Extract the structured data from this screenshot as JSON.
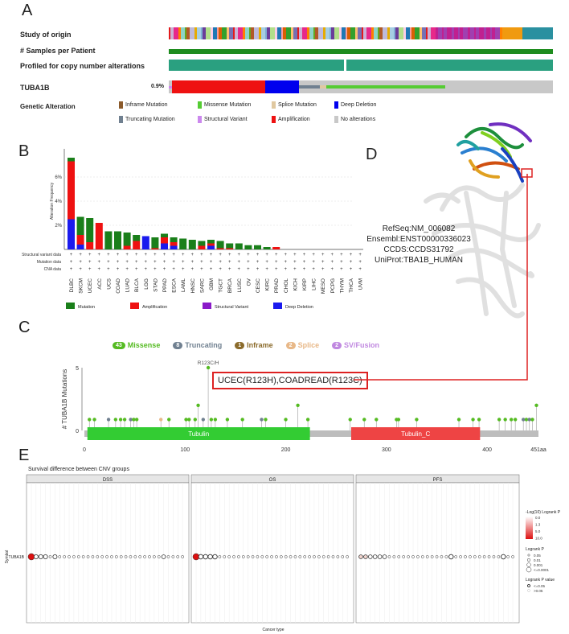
{
  "panels": {
    "a": "A",
    "b": "B",
    "c": "C",
    "d": "D",
    "e": "E"
  },
  "oncoprint": {
    "tracks": [
      "Study of origin",
      "# Samples per Patient",
      "Profiled for copy number alterations"
    ],
    "gene": "TUBA1B",
    "percent": "0.9%",
    "legend_title": "Genetic Alteration",
    "legend": [
      {
        "label": "Inframe Mutation",
        "color": "#8b5a2b"
      },
      {
        "label": "Missense Mutation",
        "color": "#55cc33"
      },
      {
        "label": "Splice Mutation",
        "color": "#e0c8a0"
      },
      {
        "label": "Deep Deletion",
        "color": "#0000ee"
      },
      {
        "label": "Truncating Mutation",
        "color": "#708090"
      },
      {
        "label": "Structural Variant",
        "color": "#cc88ee"
      },
      {
        "label": "Amplification",
        "color": "#ee1111"
      },
      {
        "label": "No alterations",
        "color": "#c8c8c8"
      }
    ]
  },
  "chart_data": [
    {
      "type": "bar",
      "ylabel": "Alteration Frequency",
      "yticks": [
        "2%",
        "4%",
        "6%"
      ],
      "ylim": [
        0,
        8
      ],
      "categories": [
        "DLBC",
        "SKCM",
        "UCEC",
        "ACC",
        "UCS",
        "COAD",
        "LUAD",
        "BLCA",
        "LGG",
        "STAD",
        "PPAD",
        "ESCA",
        "LAML",
        "HNSC",
        "SARC",
        "GBM",
        "TGCT",
        "BRCA",
        "LUSC",
        "OV",
        "CESC",
        "KIRC",
        "PRAD",
        "CHOL",
        "KICH",
        "KIRP",
        "LIHC",
        "MESO",
        "PCPG",
        "THYM",
        "THCA",
        "UVM"
      ],
      "series": [
        {
          "name": "Mutation",
          "color": "#1a7f1a",
          "values": [
            0.3,
            1.5,
            2.0,
            0,
            1.5,
            1.5,
            1.1,
            0.5,
            0,
            0.9,
            0.3,
            0.4,
            0.9,
            0.8,
            0.4,
            0.3,
            0.6,
            0.4,
            0.5,
            0.35,
            0.35,
            0.2,
            0,
            0,
            0,
            0,
            0,
            0,
            0,
            0,
            0,
            0
          ]
        },
        {
          "name": "Amplification",
          "color": "#ee1111",
          "values": [
            4.8,
            0.8,
            0.6,
            2.2,
            0,
            0,
            0.3,
            0.7,
            0,
            0.1,
            0.5,
            0.3,
            0,
            0,
            0.3,
            0.2,
            0.1,
            0.1,
            0,
            0,
            0,
            0,
            0.2,
            0,
            0,
            0,
            0,
            0,
            0,
            0,
            0,
            0
          ]
        },
        {
          "name": "Structural Variant",
          "color": "#8a1ac8",
          "values": [
            0,
            0,
            0,
            0,
            0,
            0,
            0,
            0,
            0,
            0,
            0,
            0,
            0,
            0,
            0,
            0,
            0,
            0,
            0,
            0,
            0,
            0,
            0,
            0,
            0,
            0,
            0,
            0,
            0,
            0,
            0,
            0
          ]
        },
        {
          "name": "Deep Deletion",
          "color": "#1a1aee",
          "values": [
            2.5,
            0.4,
            0,
            0,
            0,
            0,
            0,
            0,
            1.1,
            0,
            0.5,
            0.3,
            0,
            0,
            0,
            0.3,
            0,
            0,
            0,
            0,
            0,
            0,
            0,
            0,
            0,
            0,
            0,
            0,
            0,
            0,
            0,
            0
          ]
        }
      ],
      "row_labels": [
        "Structural variant data",
        "Mutation data",
        "CNA data"
      ]
    },
    {
      "type": "scatter",
      "ylabel": "# TUBA1B Mutations",
      "yticks": [
        "0",
        "5"
      ],
      "xticks": [
        "0",
        "100",
        "200",
        "300",
        "400",
        "451aa"
      ],
      "xlim": [
        0,
        451
      ],
      "ylim": [
        0,
        5
      ],
      "peak_label": "R123C/H",
      "callout": "UCEC(R123H),COADREAD(R123C)",
      "summary": [
        {
          "count": "43",
          "label": "Missense",
          "color": "#55bb22"
        },
        {
          "count": "8",
          "label": "Truncating",
          "color": "#708090"
        },
        {
          "count": "1",
          "label": "Inframe",
          "color": "#8b6b2b"
        },
        {
          "count": "2",
          "label": "Splice",
          "color": "#e8b888"
        },
        {
          "count": "2",
          "label": "SV/Fusion",
          "color": "#c088e0"
        }
      ],
      "domains": [
        {
          "name": "Tubulin",
          "start": 3,
          "end": 224,
          "color": "#33cc33"
        },
        {
          "name": "Tubulin_C",
          "start": 265,
          "end": 393,
          "color": "#ee4444"
        }
      ],
      "lollipops": [
        {
          "x": 5,
          "y": 1,
          "c": "#55bb22"
        },
        {
          "x": 10,
          "y": 1,
          "c": "#55bb22"
        },
        {
          "x": 24,
          "y": 1,
          "c": "#708090"
        },
        {
          "x": 31,
          "y": 1,
          "c": "#55bb22"
        },
        {
          "x": 36,
          "y": 1,
          "c": "#55bb22"
        },
        {
          "x": 40,
          "y": 1,
          "c": "#55bb22"
        },
        {
          "x": 46,
          "y": 1,
          "c": "#708090"
        },
        {
          "x": 49,
          "y": 1,
          "c": "#55bb22"
        },
        {
          "x": 52,
          "y": 1,
          "c": "#55bb22"
        },
        {
          "x": 76,
          "y": 1,
          "c": "#e8b888"
        },
        {
          "x": 84,
          "y": 1,
          "c": "#55bb22"
        },
        {
          "x": 101,
          "y": 1,
          "c": "#55bb22"
        },
        {
          "x": 104,
          "y": 1,
          "c": "#55bb22"
        },
        {
          "x": 110,
          "y": 1,
          "c": "#55bb22"
        },
        {
          "x": 113,
          "y": 2,
          "c": "#55bb22"
        },
        {
          "x": 118,
          "y": 1,
          "c": "#708090"
        },
        {
          "x": 123,
          "y": 5,
          "c": "#55bb22"
        },
        {
          "x": 126,
          "y": 1,
          "c": "#55bb22"
        },
        {
          "x": 130,
          "y": 1,
          "c": "#55bb22"
        },
        {
          "x": 142,
          "y": 1,
          "c": "#55bb22"
        },
        {
          "x": 157,
          "y": 1,
          "c": "#55bb22"
        },
        {
          "x": 176,
          "y": 1,
          "c": "#708090"
        },
        {
          "x": 180,
          "y": 1,
          "c": "#55bb22"
        },
        {
          "x": 200,
          "y": 1,
          "c": "#55bb22"
        },
        {
          "x": 212,
          "y": 2,
          "c": "#55bb22"
        },
        {
          "x": 222,
          "y": 1,
          "c": "#55bb22"
        },
        {
          "x": 264,
          "y": 1,
          "c": "#55bb22"
        },
        {
          "x": 278,
          "y": 1,
          "c": "#55bb22"
        },
        {
          "x": 290,
          "y": 1,
          "c": "#55bb22"
        },
        {
          "x": 310,
          "y": 1,
          "c": "#55bb22"
        },
        {
          "x": 312,
          "y": 1,
          "c": "#55bb22"
        },
        {
          "x": 330,
          "y": 1,
          "c": "#55bb22"
        },
        {
          "x": 372,
          "y": 1,
          "c": "#55bb22"
        },
        {
          "x": 386,
          "y": 1,
          "c": "#55bb22"
        },
        {
          "x": 392,
          "y": 1,
          "c": "#55bb22"
        },
        {
          "x": 412,
          "y": 1,
          "c": "#55bb22"
        },
        {
          "x": 418,
          "y": 1,
          "c": "#55bb22"
        },
        {
          "x": 424,
          "y": 1,
          "c": "#55bb22"
        },
        {
          "x": 428,
          "y": 1,
          "c": "#55bb22"
        },
        {
          "x": 436,
          "y": 1,
          "c": "#708090"
        },
        {
          "x": 439,
          "y": 1,
          "c": "#55bb22"
        },
        {
          "x": 442,
          "y": 1,
          "c": "#708090"
        },
        {
          "x": 445,
          "y": 1,
          "c": "#55bb22"
        },
        {
          "x": 449,
          "y": 2,
          "c": "#55bb22"
        }
      ]
    }
  ],
  "structure": {
    "lines": [
      "RefSeq:NM_006082",
      "Ensembl:ENST00000336023",
      "CCDS:CCDS31792",
      "UniProt:TBA1B_HUMAN"
    ]
  },
  "survival": {
    "title": "Survival difference between CNV groups",
    "facets": [
      "DSS",
      "OS",
      "PFS"
    ],
    "ylabel": "Symbol",
    "row": "TUBA1B",
    "xlabel": "Cancer type",
    "n_cols": 33,
    "legend_fill_title": "-Log(10) Logrank P",
    "legend_fill_ticks": [
      "0.0",
      "1.3",
      "5.0",
      "10.0"
    ],
    "legend_size_title": "Logrank P",
    "legend_size_items": [
      "0.05",
      "0.01",
      "0.001",
      "<=0.0001"
    ],
    "legend_sig_title": "Logrank P value",
    "legend_sig_items": [
      "<=0.05",
      ">0.05"
    ]
  }
}
